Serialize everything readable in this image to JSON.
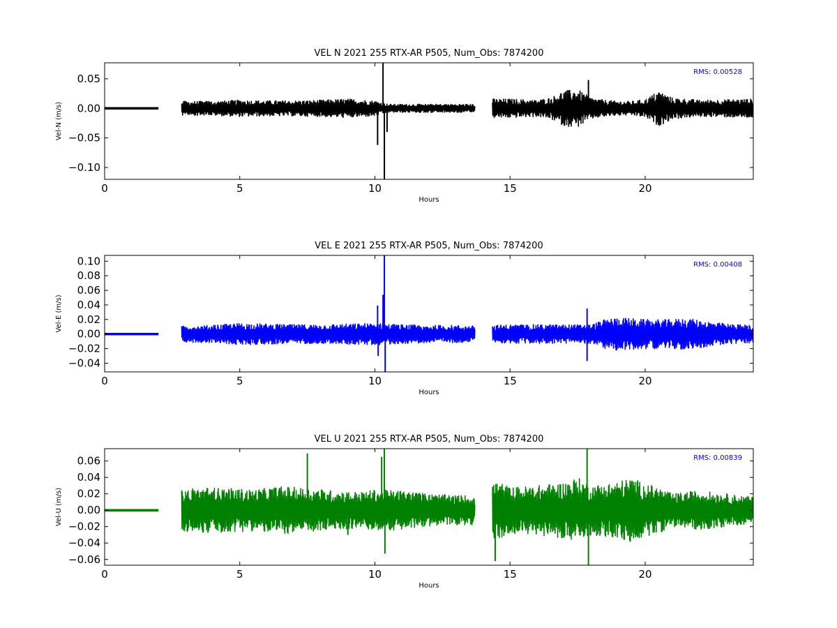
{
  "chart_data": [
    {
      "type": "line",
      "title": "VEL N 2021 255 RTX-AR  P505, Num_Obs: 7874200",
      "xlabel": "Hours",
      "ylabel": "Vel-N (m/s)",
      "xlim": [
        0,
        24
      ],
      "ylim": [
        -0.12,
        0.077
      ],
      "xticks": [
        0,
        5,
        10,
        15,
        20
      ],
      "yticks": [
        0.05,
        0.0,
        -0.05,
        -0.1
      ],
      "ytick_labels": [
        "0.05",
        "0.00",
        "−0.05",
        "−0.10"
      ],
      "color": "#000000",
      "annotation": "RMS:  0.00528",
      "data_segments": [
        [
          0.0,
          2.0
        ],
        [
          2.85,
          13.7
        ],
        [
          14.35,
          24.0
        ]
      ],
      "envelope": {
        "x": [
          0,
          2,
          2.85,
          4,
          5,
          6,
          7,
          8,
          9,
          10,
          10.5,
          11,
          12,
          13,
          13.7,
          14.35,
          15,
          16,
          16.5,
          17,
          17.5,
          18,
          18.5,
          19,
          19.5,
          20,
          20.5,
          21,
          22,
          23,
          24
        ],
        "amp": [
          0.0,
          0.0,
          0.012,
          0.012,
          0.014,
          0.013,
          0.013,
          0.014,
          0.016,
          0.013,
          0.007,
          0.007,
          0.007,
          0.007,
          0.007,
          0.016,
          0.016,
          0.014,
          0.018,
          0.03,
          0.032,
          0.018,
          0.014,
          0.012,
          0.012,
          0.015,
          0.03,
          0.018,
          0.014,
          0.015,
          0.016
        ]
      },
      "spikes": [
        {
          "x": 10.1,
          "y": -0.062
        },
        {
          "x": 10.3,
          "y": 0.077
        },
        {
          "x": 10.35,
          "y": -0.12
        },
        {
          "x": 10.45,
          "y": -0.04
        },
        {
          "x": 17.9,
          "y": 0.048
        }
      ]
    },
    {
      "type": "line",
      "title": "VEL E 2021 255 RTX-AR  P505, Num_Obs: 7874200",
      "xlabel": "Hours",
      "ylabel": "Vel-E (m/s)",
      "xlim": [
        0,
        24
      ],
      "ylim": [
        -0.052,
        0.108
      ],
      "xticks": [
        0,
        5,
        10,
        15,
        20
      ],
      "yticks": [
        0.1,
        0.08,
        0.06,
        0.04,
        0.02,
        0.0,
        -0.02,
        -0.04
      ],
      "ytick_labels": [
        "0.10",
        "0.08",
        "0.06",
        "0.04",
        "0.02",
        "0.00",
        "−0.02",
        "−0.04"
      ],
      "color": "#0000ff",
      "annotation": "RMS:  0.00408",
      "data_segments": [
        [
          0.0,
          2.0
        ],
        [
          2.85,
          13.7
        ],
        [
          14.35,
          24.0
        ]
      ],
      "envelope": {
        "x": [
          0,
          2,
          2.85,
          4,
          5,
          6,
          7,
          8,
          9,
          10,
          10.5,
          11,
          12,
          13,
          13.7,
          14.35,
          15,
          16,
          17,
          18,
          18.5,
          19,
          20,
          21,
          21.5,
          22,
          23,
          24
        ],
        "amp": [
          0.0,
          0.0,
          0.011,
          0.012,
          0.015,
          0.014,
          0.013,
          0.013,
          0.014,
          0.015,
          0.014,
          0.013,
          0.012,
          0.012,
          0.011,
          0.012,
          0.013,
          0.013,
          0.013,
          0.013,
          0.02,
          0.023,
          0.02,
          0.02,
          0.022,
          0.019,
          0.014,
          0.012
        ]
      },
      "spikes": [
        {
          "x": 10.1,
          "y": 0.039
        },
        {
          "x": 10.12,
          "y": -0.03
        },
        {
          "x": 10.3,
          "y": 0.054
        },
        {
          "x": 10.35,
          "y": 0.108
        },
        {
          "x": 10.38,
          "y": -0.052
        },
        {
          "x": 17.85,
          "y": 0.035
        },
        {
          "x": 17.85,
          "y": -0.037
        }
      ]
    },
    {
      "type": "line",
      "title": "VEL U 2021 255 RTX-AR  P505, Num_Obs: 7874200",
      "xlabel": "Hours",
      "ylabel": "Vel-U (m/s)",
      "xlim": [
        0,
        24
      ],
      "ylim": [
        -0.067,
        0.075
      ],
      "xticks": [
        0,
        5,
        10,
        15,
        20
      ],
      "yticks": [
        0.06,
        0.04,
        0.02,
        0.0,
        -0.02,
        -0.04,
        -0.06
      ],
      "ytick_labels": [
        "0.06",
        "0.04",
        "0.02",
        "0.00",
        "−0.02",
        "−0.04",
        "−0.06"
      ],
      "color": "#008000",
      "annotation": "RMS:  0.00839",
      "data_segments": [
        [
          0.0,
          2.0
        ],
        [
          2.85,
          13.7
        ],
        [
          14.35,
          24.0
        ]
      ],
      "envelope": {
        "x": [
          0,
          2,
          2.85,
          3.5,
          4.5,
          5.5,
          6.5,
          7.5,
          8.5,
          9.5,
          10,
          11,
          12,
          13,
          13.7,
          14.35,
          14.6,
          15,
          16,
          17,
          17.5,
          18,
          19,
          19.5,
          20,
          20.5,
          21,
          22,
          23,
          24
        ],
        "amp": [
          0.0,
          0.0,
          0.025,
          0.028,
          0.027,
          0.025,
          0.029,
          0.027,
          0.024,
          0.022,
          0.025,
          0.024,
          0.02,
          0.018,
          0.018,
          0.035,
          0.035,
          0.028,
          0.03,
          0.034,
          0.04,
          0.03,
          0.035,
          0.04,
          0.032,
          0.028,
          0.02,
          0.024,
          0.02,
          0.016
        ]
      },
      "spikes": [
        {
          "x": 7.5,
          "y": 0.069
        },
        {
          "x": 9.0,
          "y": -0.03
        },
        {
          "x": 10.25,
          "y": 0.065
        },
        {
          "x": 10.35,
          "y": 0.075
        },
        {
          "x": 10.37,
          "y": -0.053
        },
        {
          "x": 14.45,
          "y": -0.062
        },
        {
          "x": 17.85,
          "y": 0.075
        },
        {
          "x": 17.9,
          "y": -0.067
        }
      ]
    }
  ]
}
